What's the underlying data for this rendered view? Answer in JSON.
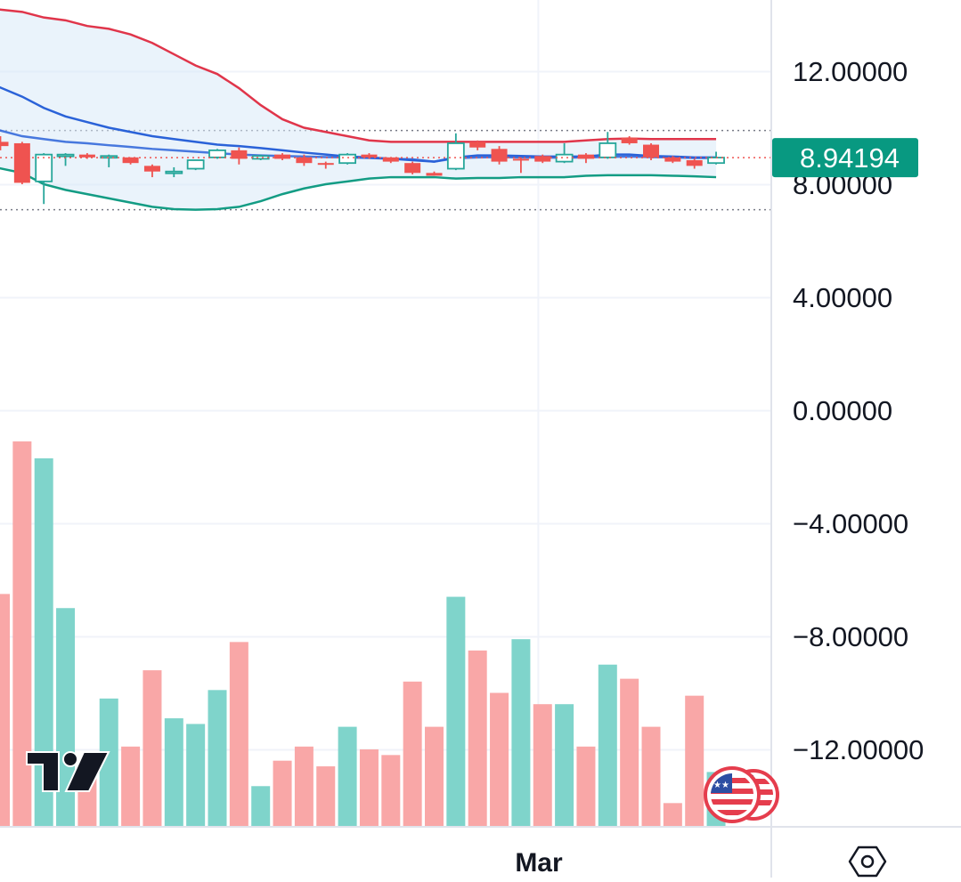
{
  "chart_data": {
    "type": "candlestick",
    "price_axis": {
      "ticks": [
        "12.00000",
        "8.00000",
        "4.00000",
        "0.00000",
        "−4.00000",
        "−8.00000",
        "−12.00000"
      ],
      "tick_values": [
        12,
        8,
        4,
        0,
        -4,
        -8,
        -12
      ],
      "range": [
        -15.0,
        14.5
      ]
    },
    "time_axis": {
      "labels": [
        "Mar"
      ],
      "label_candle_index": [
        24.8
      ]
    },
    "last_price": {
      "label": "8.94194",
      "value": 8.94194,
      "color": "#089981"
    },
    "dotted_levels": [
      9.9,
      7.1
    ],
    "candles": [
      {
        "o": 9.5,
        "h": 9.7,
        "c": 9.35,
        "l": 9.2
      },
      {
        "o": 9.45,
        "h": 9.5,
        "c": 8.05,
        "l": 8.0
      },
      {
        "o": 8.1,
        "h": 9.1,
        "c": 9.05,
        "l": 7.3
      },
      {
        "o": 9.0,
        "h": 9.1,
        "c": 9.05,
        "l": 8.65
      },
      {
        "o": 9.05,
        "h": 9.1,
        "c": 8.95,
        "l": 8.9
      },
      {
        "o": 8.95,
        "h": 9.05,
        "c": 9.0,
        "l": 8.6
      },
      {
        "o": 8.95,
        "h": 8.95,
        "c": 8.75,
        "l": 8.7
      },
      {
        "o": 8.65,
        "h": 8.7,
        "c": 8.45,
        "l": 8.25
      },
      {
        "o": 8.4,
        "h": 8.6,
        "c": 8.45,
        "l": 8.25
      },
      {
        "o": 8.55,
        "h": 8.85,
        "c": 8.85,
        "l": 8.5
      },
      {
        "o": 8.95,
        "h": 9.25,
        "c": 9.2,
        "l": 8.9
      },
      {
        "o": 9.2,
        "h": 9.3,
        "c": 8.9,
        "l": 8.7
      },
      {
        "o": 8.9,
        "h": 9.05,
        "c": 9.0,
        "l": 8.85
      },
      {
        "o": 9.05,
        "h": 9.1,
        "c": 8.9,
        "l": 8.85
      },
      {
        "o": 8.95,
        "h": 9.05,
        "c": 8.75,
        "l": 8.65
      },
      {
        "o": 8.75,
        "h": 8.8,
        "c": 8.7,
        "l": 8.55
      },
      {
        "o": 8.75,
        "h": 9.1,
        "c": 9.05,
        "l": 8.7
      },
      {
        "o": 9.05,
        "h": 9.1,
        "c": 8.95,
        "l": 8.9
      },
      {
        "o": 8.95,
        "h": 8.95,
        "c": 8.8,
        "l": 8.75
      },
      {
        "o": 8.75,
        "h": 8.8,
        "c": 8.4,
        "l": 8.35
      },
      {
        "o": 8.4,
        "h": 8.45,
        "c": 8.3,
        "l": 8.3
      },
      {
        "o": 8.55,
        "h": 9.8,
        "c": 9.45,
        "l": 8.5
      },
      {
        "o": 9.5,
        "h": 9.55,
        "c": 9.3,
        "l": 9.2
      },
      {
        "o": 9.25,
        "h": 9.35,
        "c": 8.8,
        "l": 8.7
      },
      {
        "o": 8.9,
        "h": 8.95,
        "c": 8.85,
        "l": 8.4
      },
      {
        "o": 9.0,
        "h": 9.05,
        "c": 8.8,
        "l": 8.75
      },
      {
        "o": 8.8,
        "h": 9.45,
        "c": 9.05,
        "l": 8.75
      },
      {
        "o": 9.05,
        "h": 9.1,
        "c": 8.9,
        "l": 8.75
      },
      {
        "o": 8.95,
        "h": 9.85,
        "c": 9.45,
        "l": 8.9
      },
      {
        "o": 9.65,
        "h": 9.7,
        "c": 9.45,
        "l": 9.4
      },
      {
        "o": 9.4,
        "h": 9.45,
        "c": 8.95,
        "l": 8.85
      },
      {
        "o": 8.95,
        "h": 9.0,
        "c": 8.8,
        "l": 8.75
      },
      {
        "o": 8.85,
        "h": 8.9,
        "c": 8.65,
        "l": 8.55
      },
      {
        "o": 8.75,
        "h": 9.15,
        "c": 8.94194,
        "l": 8.7
      }
    ],
    "bollinger": {
      "upper": [
        14.2,
        14.1,
        13.9,
        13.8,
        13.6,
        13.5,
        13.3,
        13.0,
        12.6,
        12.2,
        11.9,
        11.4,
        10.8,
        10.3,
        10.0,
        9.85,
        9.7,
        9.55,
        9.5,
        9.5,
        9.5,
        9.5,
        9.5,
        9.5,
        9.5,
        9.5,
        9.5,
        9.55,
        9.6,
        9.62,
        9.6,
        9.6,
        9.6,
        9.6
      ],
      "basis": [
        11.5,
        11.1,
        10.7,
        10.4,
        10.2,
        10.0,
        9.85,
        9.7,
        9.6,
        9.5,
        9.4,
        9.35,
        9.28,
        9.2,
        9.12,
        9.05,
        8.98,
        8.95,
        8.9,
        8.85,
        8.8,
        8.95,
        9.02,
        9.02,
        9.0,
        8.98,
        8.98,
        8.98,
        9.05,
        9.05,
        9.0,
        8.98,
        8.95,
        8.95
      ],
      "lower": [
        8.6,
        8.4,
        8.0,
        7.8,
        7.65,
        7.5,
        7.35,
        7.2,
        7.12,
        7.1,
        7.12,
        7.2,
        7.4,
        7.65,
        7.85,
        8.0,
        8.1,
        8.2,
        8.25,
        8.25,
        8.25,
        8.2,
        8.22,
        8.22,
        8.25,
        8.25,
        8.25,
        8.3,
        8.32,
        8.32,
        8.32,
        8.3,
        8.28,
        8.25
      ],
      "fill_color": "#d8eaf8"
    },
    "ma_line": [
      9.95,
      9.7,
      9.6,
      9.5,
      9.45,
      9.38,
      9.32,
      9.25,
      9.2,
      9.15,
      9.1,
      9.05,
      9.02,
      9.0,
      8.98,
      8.96,
      8.95,
      8.93,
      8.9,
      8.88,
      8.8,
      8.92,
      8.95,
      8.96,
      8.95,
      8.94,
      8.94,
      8.95,
      8.97,
      8.98,
      8.96,
      8.95,
      8.93,
      8.93
    ],
    "series_colors": {
      "up": "#26a69a",
      "down": "#ef5350",
      "upper_band": "#e0354a",
      "lower_band": "#139c84",
      "basis": "#2a62d8",
      "ma": "#2a62d8",
      "vol_up": "#7fd4cb",
      "vol_down": "#f9a7a7"
    },
    "volume": {
      "dir": [
        "down",
        "down",
        "up",
        "up",
        "down",
        "up",
        "down",
        "down",
        "up",
        "up",
        "up",
        "down",
        "up",
        "down",
        "down",
        "down",
        "up",
        "down",
        "down",
        "down",
        "down",
        "up",
        "down",
        "down",
        "up",
        "down",
        "up",
        "down",
        "up",
        "down",
        "down",
        "down",
        "down",
        "up"
      ],
      "value": [
        -6.5,
        -1.1,
        -1.7,
        -7.0,
        -13.0,
        -10.2,
        -11.9,
        -9.2,
        -10.9,
        -11.1,
        -9.9,
        -8.2,
        -13.3,
        -12.4,
        -11.9,
        -12.6,
        -11.2,
        -12.0,
        -12.2,
        -9.6,
        -11.2,
        -6.6,
        -8.5,
        -10.0,
        -8.1,
        -10.4,
        -10.4,
        -11.9,
        -9.0,
        -9.5,
        -11.2,
        -13.9,
        -10.1,
        -12.8
      ],
      "baseline": -14.8
    }
  },
  "branding": {
    "logo_text": "TV",
    "flag_icon": "us-flag-icon"
  },
  "settings_icon": "settings-icon"
}
